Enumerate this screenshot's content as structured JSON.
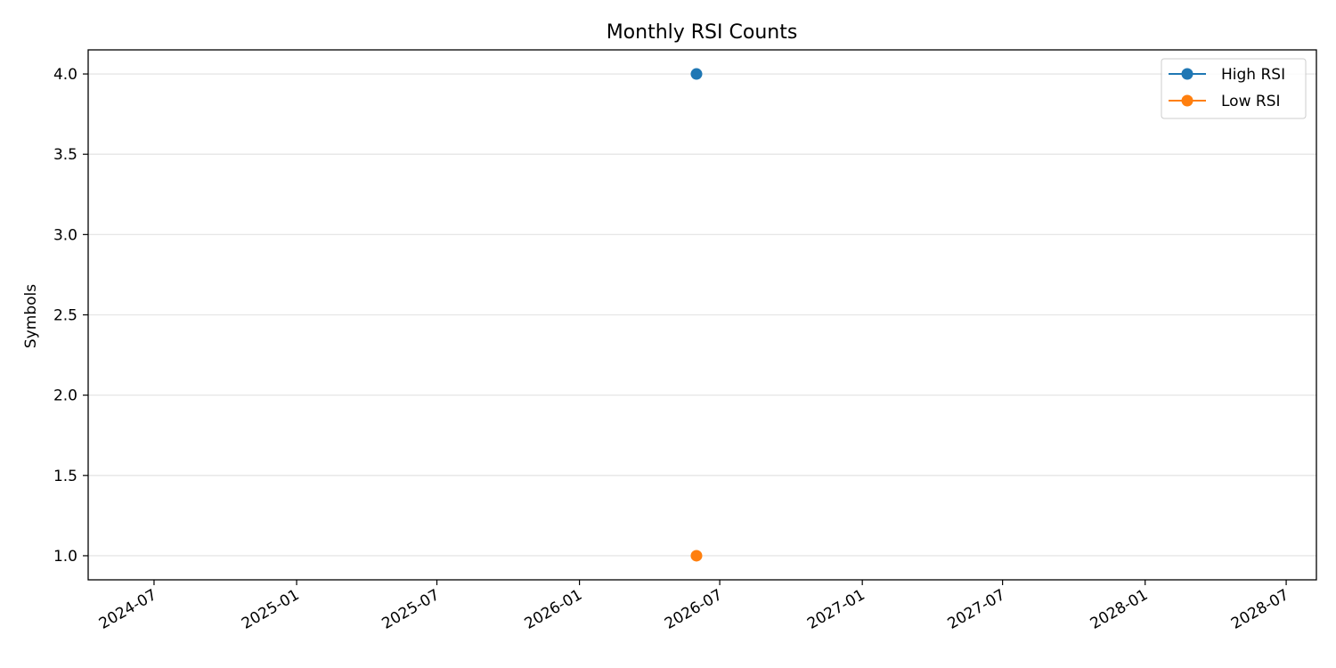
{
  "chart_data": {
    "type": "line",
    "title": "Monthly RSI Counts",
    "xlabel": "",
    "ylabel": "Symbols",
    "x_axis_type": "date",
    "xlim": [
      "2024-04-07",
      "2028-08-09"
    ],
    "ylim": [
      0.85,
      4.15
    ],
    "x_ticks": [
      "2024-07",
      "2025-01",
      "2025-07",
      "2026-01",
      "2026-07",
      "2027-01",
      "2027-07",
      "2028-01",
      "2028-07"
    ],
    "y_ticks": [
      1.0,
      1.5,
      2.0,
      2.5,
      3.0,
      3.5,
      4.0
    ],
    "y_tick_labels": [
      "1.0",
      "1.5",
      "2.0",
      "2.5",
      "3.0",
      "3.5",
      "4.0"
    ],
    "grid": "horizontal",
    "legend": "top-right",
    "series": [
      {
        "name": "High RSI",
        "color": "#1f77b4",
        "marker": "circle",
        "points": [
          {
            "x": "2026-06-01",
            "y": 4
          }
        ]
      },
      {
        "name": "Low RSI",
        "color": "#ff7f0e",
        "marker": "circle",
        "points": [
          {
            "x": "2026-06-01",
            "y": 1
          }
        ]
      }
    ]
  }
}
